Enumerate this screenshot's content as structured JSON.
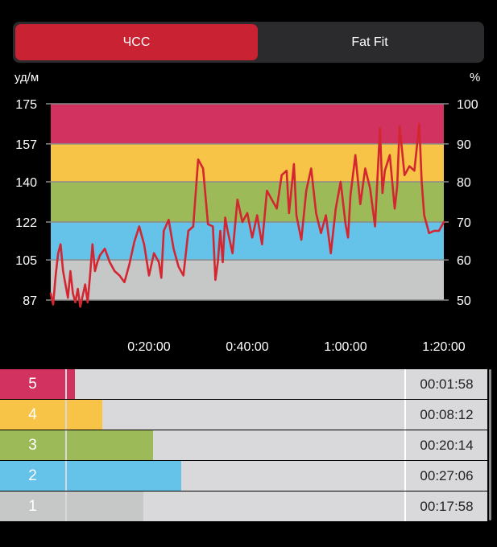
{
  "tabs": [
    {
      "label": "ЧСС",
      "active": true
    },
    {
      "label": "Fat Fit",
      "active": false
    }
  ],
  "colors": {
    "accent": "#c82233",
    "zone5": "#d1325f",
    "zone4": "#f7c447",
    "zone3": "#9cba58",
    "zone2": "#65c2e8",
    "zone1": "#c6c8c8",
    "line": "#d42630"
  },
  "chart_data": {
    "type": "line",
    "left_axis_label": "уд/м",
    "right_axis_label": "%",
    "left_ticks": [
      "175",
      "157",
      "140",
      "122",
      "105",
      "87"
    ],
    "right_ticks": [
      "100",
      "90",
      "80",
      "70",
      "60",
      "50"
    ],
    "x_ticks": [
      {
        "label": "0:20:00",
        "minutes": 20
      },
      {
        "label": "0:40:00",
        "minutes": 40
      },
      {
        "label": "1:00:00",
        "minutes": 60
      },
      {
        "label": "1:20:00",
        "minutes": 80
      }
    ],
    "ylim": [
      87,
      175
    ],
    "xlim_minutes": [
      0,
      80
    ],
    "zones": [
      {
        "zone": 5,
        "from": 157,
        "to": 175
      },
      {
        "zone": 4,
        "from": 140,
        "to": 157
      },
      {
        "zone": 3,
        "from": 122,
        "to": 140
      },
      {
        "zone": 2,
        "from": 105,
        "to": 122
      },
      {
        "zone": 1,
        "from": 87,
        "to": 105
      }
    ],
    "series": [
      {
        "x": [
          0,
          0.5,
          1,
          1.5,
          2,
          2.5,
          3,
          3.5,
          4,
          4.5,
          5,
          5.5,
          6,
          6.5,
          7,
          7.5,
          8,
          8.5,
          9,
          9.5,
          10,
          11,
          12,
          13,
          14,
          15,
          16,
          17,
          18,
          19,
          20,
          21,
          22,
          22.5,
          23,
          24,
          25,
          26,
          27,
          28,
          29,
          30,
          31,
          32,
          33,
          33.5,
          34,
          34.5,
          35,
          35.5,
          36,
          37,
          38,
          39,
          40,
          41,
          42,
          43,
          44,
          45,
          46,
          47,
          48,
          48.5,
          49,
          49.5,
          50,
          51,
          52,
          53,
          54,
          55,
          56,
          57,
          58,
          59,
          60,
          60.5,
          61,
          62,
          63,
          64,
          65,
          66,
          67,
          67.5,
          68,
          69,
          70,
          70.5,
          71,
          72,
          73,
          74,
          75,
          75.5,
          76,
          77,
          78,
          79,
          80
        ],
        "y": [
          90,
          85,
          98,
          108,
          112,
          100,
          94,
          88,
          100,
          90,
          86,
          92,
          84,
          89,
          94,
          86,
          98,
          112,
          100,
          104,
          107,
          110,
          104,
          100,
          98,
          95,
          103,
          113,
          120,
          112,
          98,
          108,
          104,
          97,
          118,
          123,
          110,
          102,
          98,
          118,
          120,
          150,
          146,
          121,
          120,
          96,
          104,
          118,
          104,
          124,
          118,
          108,
          132,
          122,
          126,
          115,
          125,
          112,
          136,
          132,
          128,
          143,
          145,
          126,
          137,
          148,
          125,
          114,
          136,
          146,
          126,
          117,
          125,
          108,
          128,
          140,
          121,
          115,
          134,
          152,
          130,
          146,
          137,
          120,
          164,
          135,
          145,
          152,
          128,
          138,
          165,
          143,
          147,
          145,
          166,
          140,
          125,
          117,
          118,
          118,
          122
        ]
      }
    ]
  },
  "zones_table": [
    {
      "label": "5",
      "time": "00:01:58",
      "fraction": 0.024
    },
    {
      "label": "4",
      "time": "00:08:12",
      "fraction": 0.104
    },
    {
      "label": "3",
      "time": "00:20:14",
      "fraction": 0.255
    },
    {
      "label": "2",
      "time": "00:27:06",
      "fraction": 0.34
    },
    {
      "label": "1",
      "time": "00:17:58",
      "fraction": 0.226
    }
  ]
}
